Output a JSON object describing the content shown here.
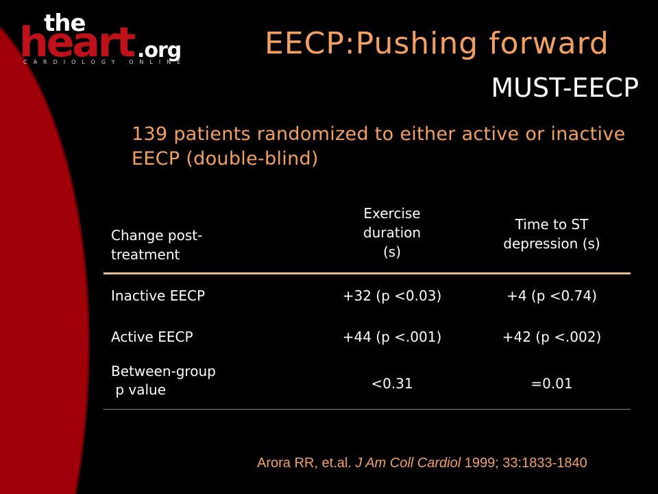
{
  "logo": {
    "the": "the",
    "heart": "heart",
    "org": ".org",
    "tagline": "CARDIOLOGY ONLINE"
  },
  "slide": {
    "title": "EECP:Pushing forward",
    "subtitle": "MUST-EECP",
    "intro": "139 patients randomized to either active or inactive EECP (double-blind)"
  },
  "table": {
    "headers": [
      "Change post-\ntreatment",
      "Exercise\nduration\n(s)",
      "Time to ST\ndepression (s)"
    ],
    "rows": [
      [
        "Inactive EECP",
        "+32 (p <0.03)",
        "+4 (p <0.74)"
      ],
      [
        "Active EECP",
        "+44 (p <.001)",
        "+42 (p <.002)"
      ],
      [
        "Between-group\n p value",
        "<0.31",
        "=0.01"
      ]
    ]
  },
  "citation": {
    "authors": "Arora RR, et.al. ",
    "journal": "J Am Coll Cardiol",
    "details": " 1999; 33:1833-1840"
  },
  "colors": {
    "accent": "#f4a060",
    "brand_red": "#c0101a",
    "background": "#000000"
  }
}
